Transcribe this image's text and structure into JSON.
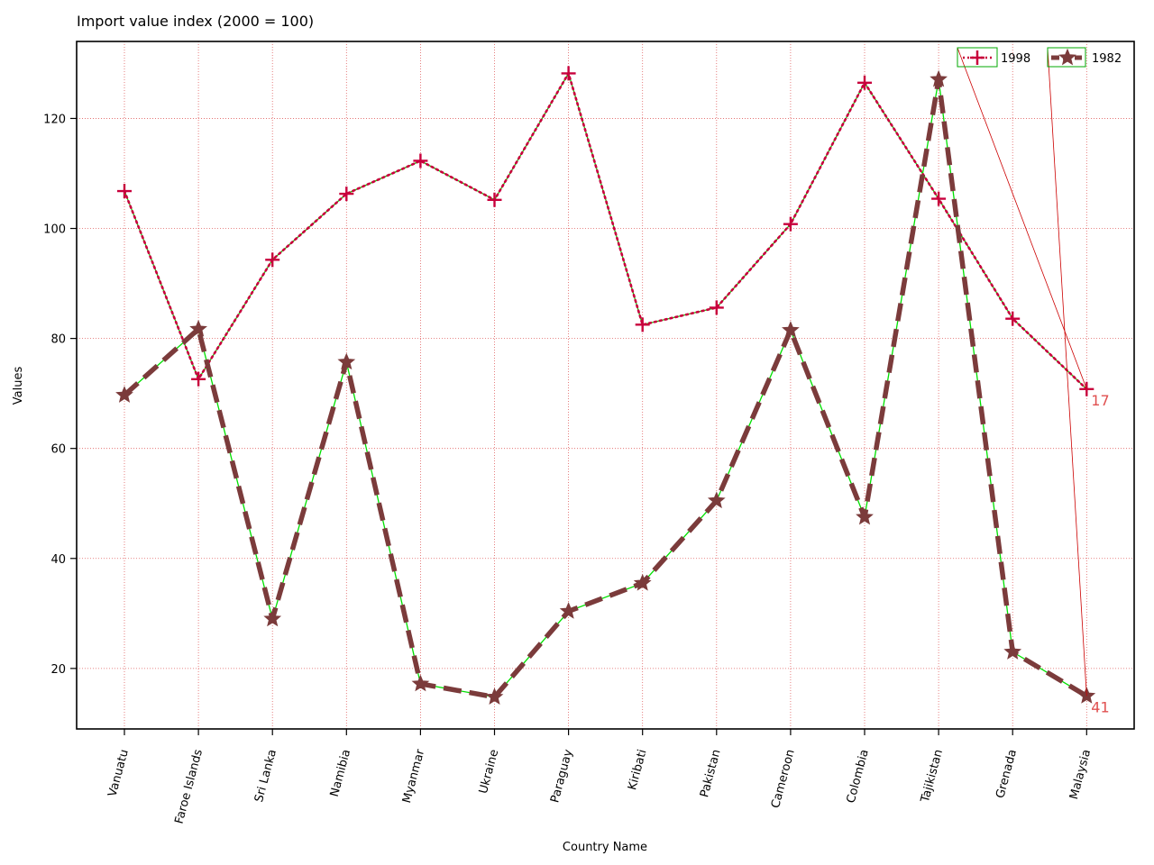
{
  "chart_data": {
    "type": "line",
    "title": "Import value index (2000 = 100)",
    "xlabel": "Country Name",
    "ylabel": "Values",
    "categories": [
      "Vanuatu",
      "Faroe Islands",
      "Sri Lanka",
      "Namibia",
      "Myanmar",
      "Ukraine",
      "Paraguay",
      "Kiribati",
      "Pakistan",
      "Cameroon",
      "Colombia",
      "Tajikistan",
      "Grenada",
      "Malaysia"
    ],
    "ylim": [
      9,
      134
    ],
    "yticks": [
      20,
      40,
      60,
      80,
      100,
      120
    ],
    "grid": true,
    "legend_position": "top-right",
    "series": [
      {
        "name": "1998",
        "color": "#c8003c",
        "line_style": "dotted",
        "marker": "plus",
        "values": [
          106.8,
          72.6,
          94.3,
          106.3,
          112.3,
          105.2,
          128.2,
          82.5,
          85.6,
          100.8,
          126.5,
          105.4,
          83.6,
          70.8
        ]
      },
      {
        "name": "1982",
        "color": "#7b3b3b",
        "line_style": "dashed",
        "marker": "star",
        "values": [
          69.7,
          81.7,
          29.0,
          75.7,
          17.2,
          14.8,
          30.4,
          35.5,
          50.5,
          81.5,
          47.5,
          127.1,
          23.0,
          15.0
        ]
      }
    ],
    "annotations": [
      {
        "text": "17",
        "x": "Malaysia",
        "y": 70.8,
        "color": "#e05050"
      },
      {
        "text": "41",
        "x": "Malaysia",
        "y": 15.0,
        "color": "#e05050"
      }
    ]
  }
}
